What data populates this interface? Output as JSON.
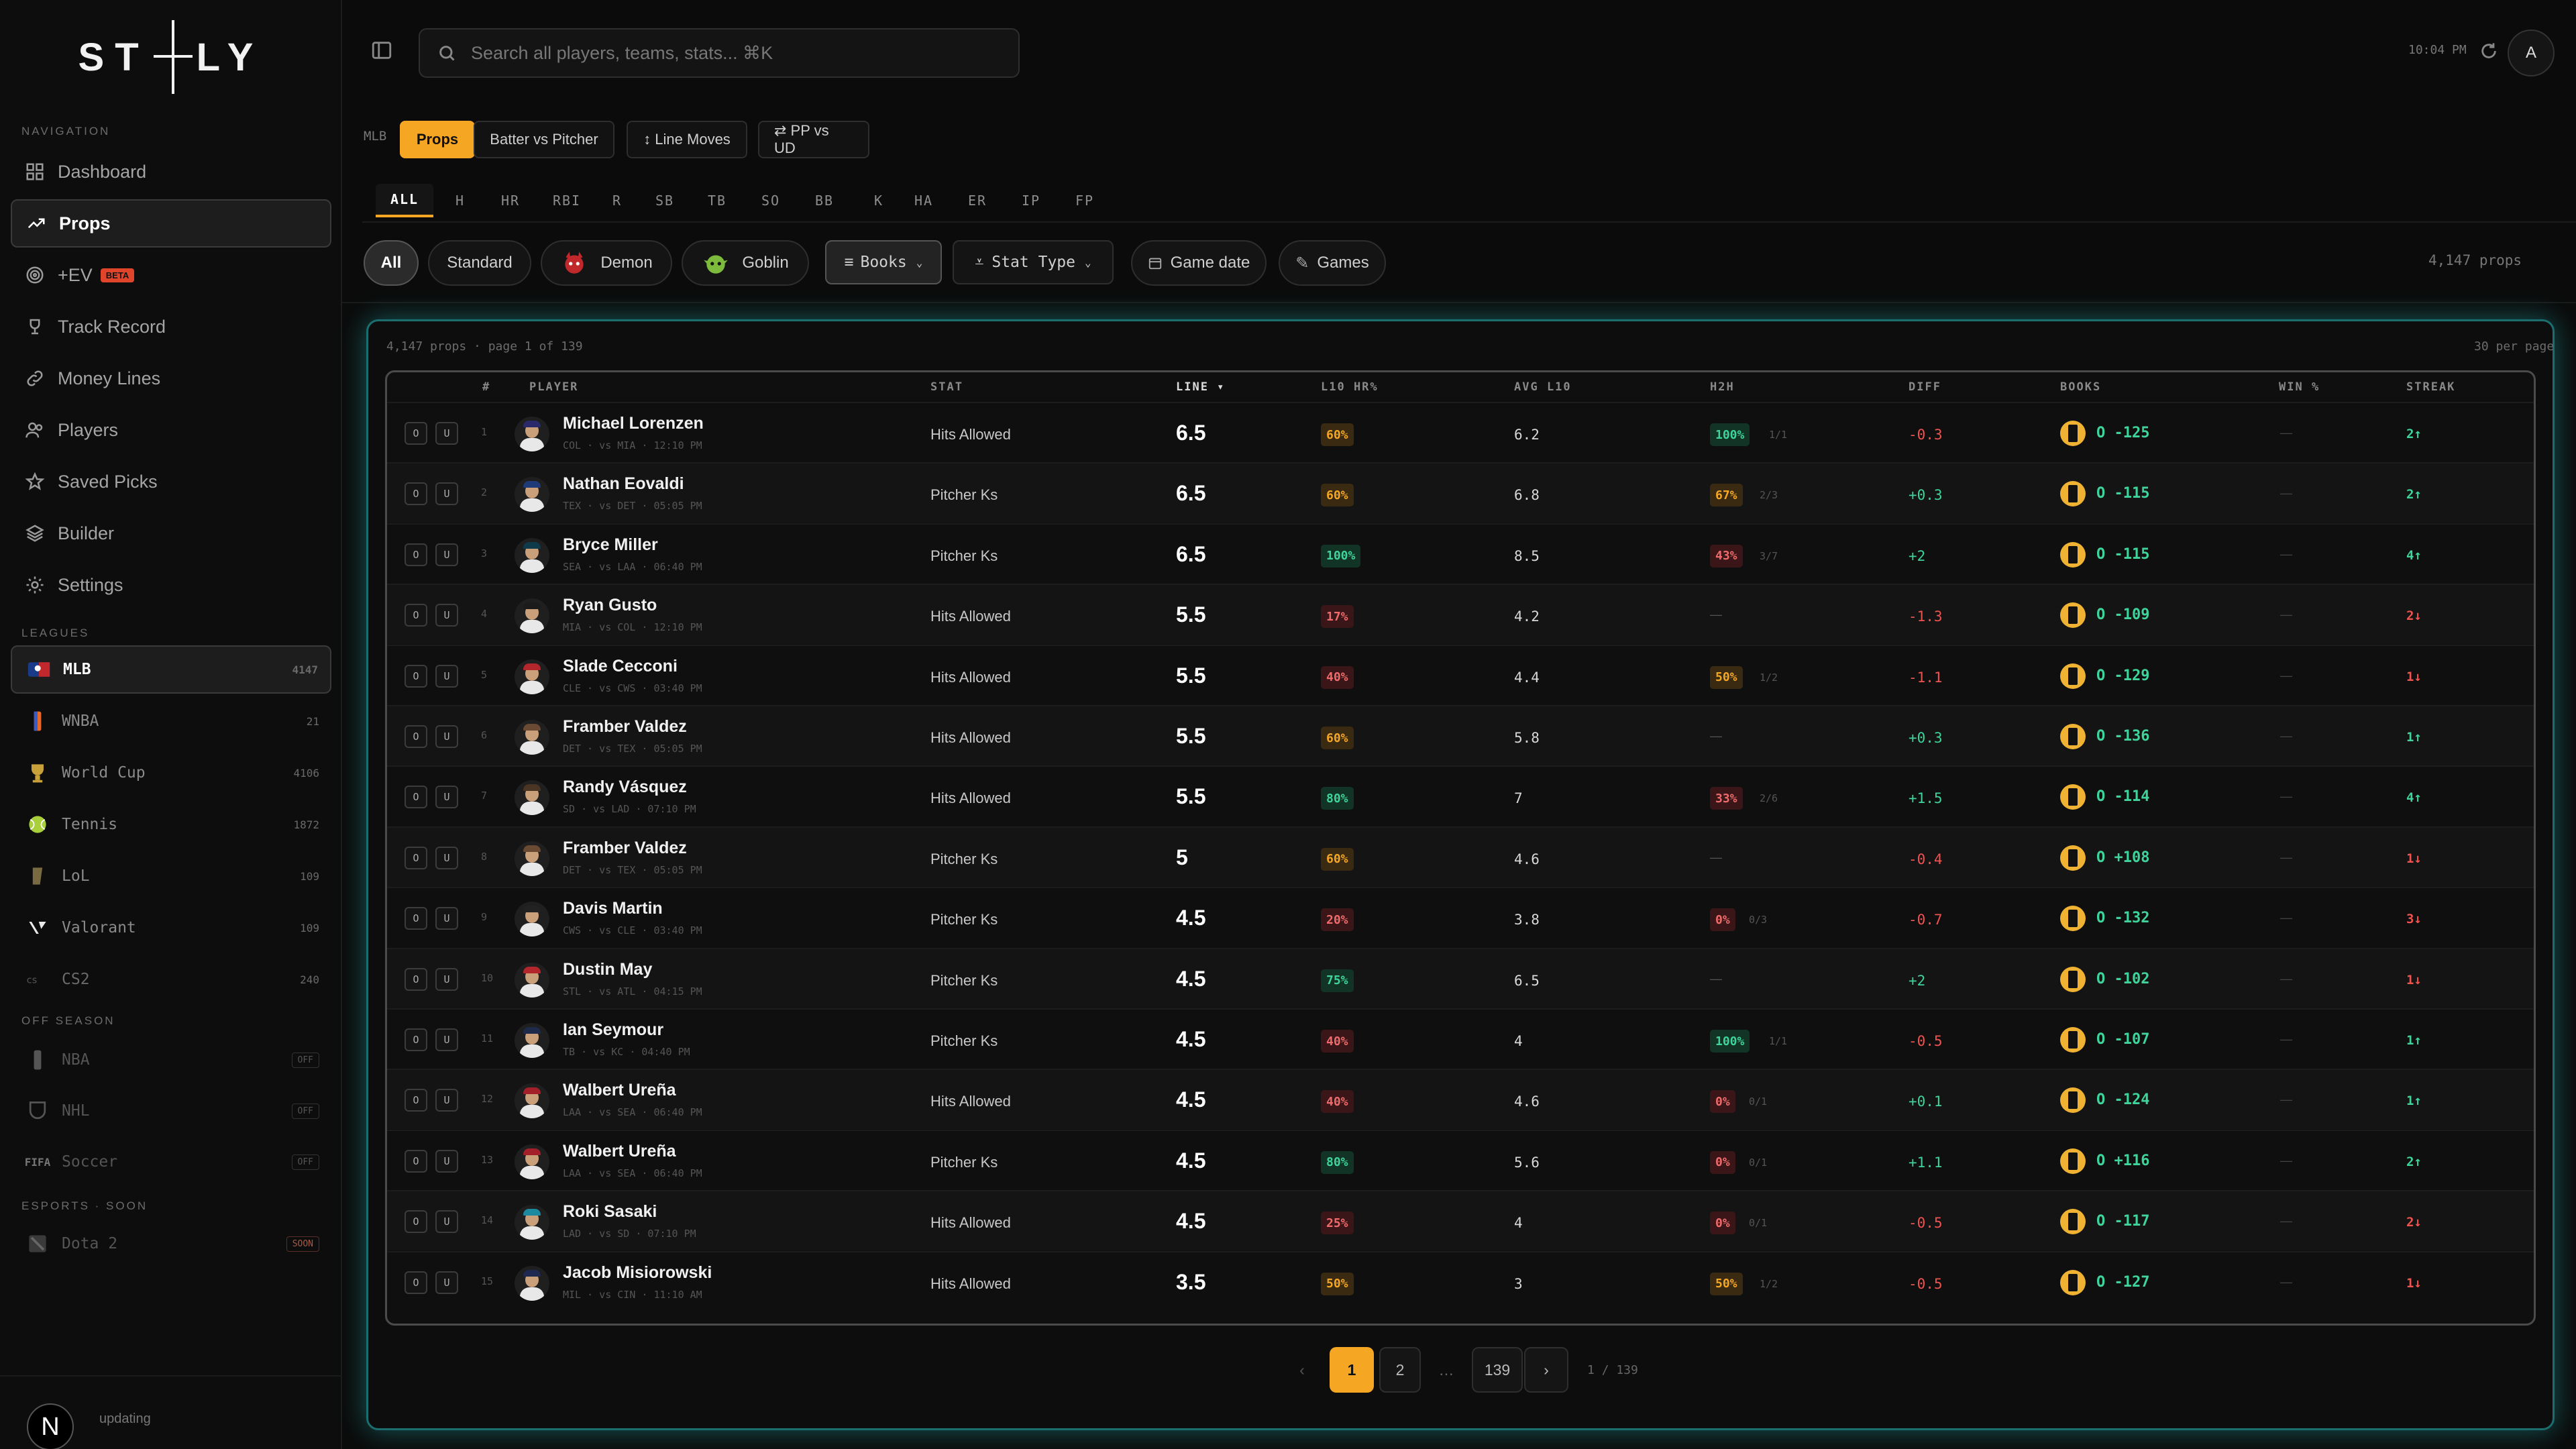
{
  "app": {
    "logo": "STATLY",
    "logo_left": "ST",
    "logo_right": "LY",
    "clock": "10:04 PM",
    "user_initial": "A",
    "status": "updating",
    "footer_badge": "N"
  },
  "search": {
    "placeholder": "Search all players, teams, stats... ⌘K"
  },
  "sidebar": {
    "nav_title": "NAVIGATION",
    "nav": [
      {
        "label": "Dashboard",
        "icon": "grid-icon"
      },
      {
        "label": "Props",
        "icon": "trend-icon",
        "active": true
      },
      {
        "label": "+EV",
        "icon": "target-icon",
        "badge": "BETA"
      },
      {
        "label": "Track Record",
        "icon": "trophy-icon"
      },
      {
        "label": "Money Lines",
        "icon": "link-icon"
      },
      {
        "label": "Players",
        "icon": "users-icon"
      },
      {
        "label": "Saved Picks",
        "icon": "star-icon"
      },
      {
        "label": "Builder",
        "icon": "layers-icon"
      },
      {
        "label": "Settings",
        "icon": "gear-icon"
      }
    ],
    "leagues_title": "LEAGUES",
    "leagues": [
      {
        "label": "MLB",
        "count": "4147",
        "active": true
      },
      {
        "label": "WNBA",
        "count": "21"
      },
      {
        "label": "World Cup",
        "count": "4106"
      },
      {
        "label": "Tennis",
        "count": "1872"
      },
      {
        "label": "LoL",
        "count": "109"
      },
      {
        "label": "Valorant",
        "count": "109"
      },
      {
        "label": "CS2",
        "count": "240"
      }
    ],
    "off_title": "OFF SEASON",
    "off": [
      {
        "label": "NBA",
        "badge": "OFF"
      },
      {
        "label": "NHL",
        "badge": "OFF"
      },
      {
        "label": "Soccer",
        "badge": "OFF",
        "prefix": "FIFA"
      }
    ],
    "esports_title": "ESPORTS · SOON",
    "esports": [
      {
        "label": "Dota 2",
        "badge": "SOON"
      }
    ]
  },
  "top": {
    "league": "MLB",
    "modes": [
      "Props",
      "Batter vs Pitcher"
    ],
    "extra": [
      "↕ Line Moves",
      "⇄ PP vs UD"
    ],
    "stat_tabs": [
      "ALL",
      "H",
      "HR",
      "RBI",
      "R",
      "SB",
      "TB",
      "SO",
      "BB",
      "K",
      "HA",
      "ER",
      "IP",
      "FP"
    ],
    "pills": [
      "All",
      "Standard",
      "Demon",
      "Goblin"
    ],
    "filters": [
      "Books",
      "Stat Type",
      "Game date",
      "Games"
    ],
    "total": "4,147 props"
  },
  "panel": {
    "count_text": "4,147 props · page 1 of 139",
    "per_page": "30 per page"
  },
  "table": {
    "headers": {
      "num": "#",
      "player": "PLAYER",
      "stat": "STAT",
      "line": "LINE ▾",
      "l10": "L10 HR%",
      "avg": "AVG L10",
      "h2h": "H2H",
      "diff": "DIFF",
      "books": "BOOKS",
      "win": "WIN %",
      "streak": "STREAK"
    },
    "rows": [
      {
        "n": "1",
        "name": "Michael Lorenzen",
        "meta": "COL · vs MIA · 12:10 PM",
        "stat": "Hits Allowed",
        "line": "6.5",
        "l10": "60%",
        "l10c": "o",
        "avg": "6.2",
        "h2h": "100%",
        "h2hc": "g",
        "h2hs": "1/1",
        "diff": "-0.3",
        "diffc": "r",
        "odds": "O -125",
        "win": "—",
        "streak": "2↑",
        "sc": "g",
        "cap": "#2a2a6a"
      },
      {
        "n": "2",
        "name": "Nathan Eovaldi",
        "meta": "TEX · vs DET · 05:05 PM",
        "stat": "Pitcher Ks",
        "line": "6.5",
        "l10": "60%",
        "l10c": "o",
        "avg": "6.8",
        "h2h": "67%",
        "h2hc": "o",
        "h2hs": "2/3",
        "diff": "+0.3",
        "diffc": "g",
        "odds": "O -115",
        "win": "—",
        "streak": "2↑",
        "sc": "g",
        "cap": "#1e3a78"
      },
      {
        "n": "3",
        "name": "Bryce Miller",
        "meta": "SEA · vs LAA · 06:40 PM",
        "stat": "Pitcher Ks",
        "line": "6.5",
        "l10": "100%",
        "l10c": "g",
        "avg": "8.5",
        "h2h": "43%",
        "h2hc": "r",
        "h2hs": "3/7",
        "diff": "+2",
        "diffc": "g",
        "odds": "O -115",
        "win": "—",
        "streak": "4↑",
        "sc": "g",
        "cap": "#0f3a4a"
      },
      {
        "n": "4",
        "name": "Ryan Gusto",
        "meta": "MIA · vs COL · 12:10 PM",
        "stat": "Hits Allowed",
        "line": "5.5",
        "l10": "17%",
        "l10c": "r",
        "avg": "4.2",
        "h2h": "",
        "h2hc": "",
        "h2hs": "",
        "diff": "-1.3",
        "diffc": "r",
        "odds": "O -109",
        "win": "—",
        "streak": "2↓",
        "sc": "r",
        "cap": "#1b1b1b"
      },
      {
        "n": "5",
        "name": "Slade Cecconi",
        "meta": "CLE · vs CWS · 03:40 PM",
        "stat": "Hits Allowed",
        "line": "5.5",
        "l10": "40%",
        "l10c": "r",
        "avg": "4.4",
        "h2h": "50%",
        "h2hc": "o",
        "h2hs": "1/2",
        "diff": "-1.1",
        "diffc": "r",
        "odds": "O -129",
        "win": "—",
        "streak": "1↓",
        "sc": "r",
        "cap": "#b3262c"
      },
      {
        "n": "6",
        "name": "Framber Valdez",
        "meta": "DET · vs TEX · 05:05 PM",
        "stat": "Hits Allowed",
        "line": "5.5",
        "l10": "60%",
        "l10c": "o",
        "avg": "5.8",
        "h2h": "",
        "h2hc": "",
        "h2hs": "",
        "diff": "+0.3",
        "diffc": "g",
        "odds": "O -136",
        "win": "—",
        "streak": "1↑",
        "sc": "g",
        "cap": "#6a4a32"
      },
      {
        "n": "7",
        "name": "Randy Vásquez",
        "meta": "SD · vs LAD · 07:10 PM",
        "stat": "Hits Allowed",
        "line": "5.5",
        "l10": "80%",
        "l10c": "g",
        "avg": "7",
        "h2h": "33%",
        "h2hc": "r",
        "h2hs": "2/6",
        "diff": "+1.5",
        "diffc": "g",
        "odds": "O -114",
        "win": "—",
        "streak": "4↑",
        "sc": "g",
        "cap": "#4a3424"
      },
      {
        "n": "8",
        "name": "Framber Valdez",
        "meta": "DET · vs TEX · 05:05 PM",
        "stat": "Pitcher Ks",
        "line": "5",
        "l10": "60%",
        "l10c": "o",
        "avg": "4.6",
        "h2h": "",
        "h2hc": "",
        "h2hs": "",
        "diff": "-0.4",
        "diffc": "r",
        "odds": "O +108",
        "win": "—",
        "streak": "1↓",
        "sc": "r",
        "cap": "#6a4a32"
      },
      {
        "n": "9",
        "name": "Davis Martin",
        "meta": "CWS · vs CLE · 03:40 PM",
        "stat": "Pitcher Ks",
        "line": "4.5",
        "l10": "20%",
        "l10c": "r",
        "avg": "3.8",
        "h2h": "0%",
        "h2hc": "r",
        "h2hs": "0/3",
        "diff": "-0.7",
        "diffc": "r",
        "odds": "O -132",
        "win": "—",
        "streak": "3↓",
        "sc": "r",
        "cap": "#222"
      },
      {
        "n": "10",
        "name": "Dustin May",
        "meta": "STL · vs ATL · 04:15 PM",
        "stat": "Pitcher Ks",
        "line": "4.5",
        "l10": "75%",
        "l10c": "g",
        "avg": "6.5",
        "h2h": "",
        "h2hc": "",
        "h2hs": "",
        "diff": "+2",
        "diffc": "g",
        "odds": "O -102",
        "win": "—",
        "streak": "1↓",
        "sc": "r",
        "cap": "#b3262c"
      },
      {
        "n": "11",
        "name": "Ian Seymour",
        "meta": "TB · vs KC · 04:40 PM",
        "stat": "Pitcher Ks",
        "line": "4.5",
        "l10": "40%",
        "l10c": "r",
        "avg": "4",
        "h2h": "100%",
        "h2hc": "g",
        "h2hs": "1/1",
        "diff": "-0.5",
        "diffc": "r",
        "odds": "O -107",
        "win": "—",
        "streak": "1↑",
        "sc": "g",
        "cap": "#1d2a4a"
      },
      {
        "n": "12",
        "name": "Walbert Ureña",
        "meta": "LAA · vs SEA · 06:40 PM",
        "stat": "Hits Allowed",
        "line": "4.5",
        "l10": "40%",
        "l10c": "r",
        "avg": "4.6",
        "h2h": "0%",
        "h2hc": "r",
        "h2hs": "0/1",
        "diff": "+0.1",
        "diffc": "g",
        "odds": "O -124",
        "win": "—",
        "streak": "1↑",
        "sc": "g",
        "cap": "#a3202a"
      },
      {
        "n": "13",
        "name": "Walbert Ureña",
        "meta": "LAA · vs SEA · 06:40 PM",
        "stat": "Pitcher Ks",
        "line": "4.5",
        "l10": "80%",
        "l10c": "g",
        "avg": "5.6",
        "h2h": "0%",
        "h2hc": "r",
        "h2hs": "0/1",
        "diff": "+1.1",
        "diffc": "g",
        "odds": "O +116",
        "win": "—",
        "streak": "2↑",
        "sc": "g",
        "cap": "#a3202a"
      },
      {
        "n": "14",
        "name": "Roki Sasaki",
        "meta": "LAD · vs SD · 07:10 PM",
        "stat": "Hits Allowed",
        "line": "4.5",
        "l10": "25%",
        "l10c": "r",
        "avg": "4",
        "h2h": "0%",
        "h2hc": "r",
        "h2hs": "0/1",
        "diff": "-0.5",
        "diffc": "r",
        "odds": "O -117",
        "win": "—",
        "streak": "2↓",
        "sc": "r",
        "cap": "#1e8aa0"
      },
      {
        "n": "15",
        "name": "Jacob Misiorowski",
        "meta": "MIL · vs CIN · 11:10 AM",
        "stat": "Hits Allowed",
        "line": "3.5",
        "l10": "50%",
        "l10c": "o",
        "avg": "3",
        "h2h": "50%",
        "h2hc": "o",
        "h2hs": "1/2",
        "diff": "-0.5",
        "diffc": "r",
        "odds": "O -127",
        "win": "—",
        "streak": "1↓",
        "sc": "r",
        "cap": "#1e2850"
      }
    ]
  },
  "pagination": {
    "pages": [
      "1",
      "2",
      "…",
      "139"
    ],
    "info": "1 / 139"
  }
}
